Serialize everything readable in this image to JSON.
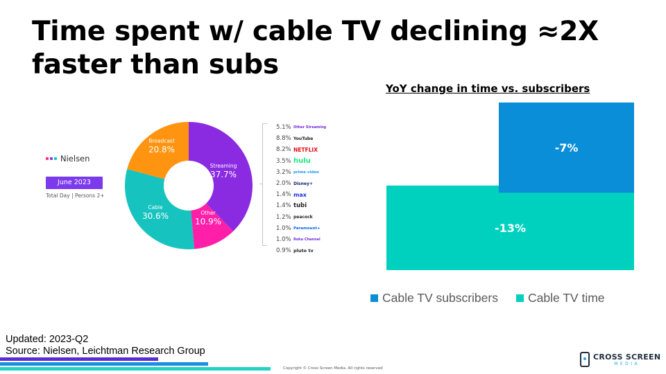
{
  "slide": {
    "title": "Time spent w/ cable TV declining ≈2X faster than subs"
  },
  "nielsen": {
    "brand": "Nielsen",
    "period": "June 2023",
    "audience": "Total Day | Persons 2+",
    "segments": [
      {
        "label": "Streaming",
        "value": "37.7%",
        "pct": 37.7,
        "color": "#8a2be2"
      },
      {
        "label": "Other",
        "value": "10.9%",
        "pct": 10.9,
        "color": "#ff1fa8"
      },
      {
        "label": "Cable",
        "value": "30.6%",
        "pct": 30.6,
        "color": "#17c3be"
      },
      {
        "label": "Broadcast",
        "value": "20.8%",
        "pct": 20.8,
        "color": "#ff9410"
      }
    ],
    "streaming_breakdown": [
      {
        "pct": "5.1%",
        "service": "Other Streaming",
        "color": "#6d28d9",
        "size": 5
      },
      {
        "pct": "8.8%",
        "service": "YouTube",
        "color": "#222222",
        "size": 6
      },
      {
        "pct": "8.2%",
        "service": "NETFLIX",
        "color": "#e50914",
        "size": 7.5
      },
      {
        "pct": "3.5%",
        "service": "hulu",
        "color": "#1ce783",
        "size": 10
      },
      {
        "pct": "3.2%",
        "service": "prime video",
        "color": "#1a98ff",
        "size": 5.5
      },
      {
        "pct": "2.0%",
        "service": "Disney+",
        "color": "#0b1f66",
        "size": 6
      },
      {
        "pct": "1.4%",
        "service": "max",
        "color": "#1a2ee8",
        "size": 8
      },
      {
        "pct": "1.4%",
        "service": "tubi",
        "color": "#222222",
        "size": 8.5
      },
      {
        "pct": "1.2%",
        "service": "peacock",
        "color": "#222222",
        "size": 6
      },
      {
        "pct": "1.0%",
        "service": "Paramount+",
        "color": "#0064ff",
        "size": 5.5
      },
      {
        "pct": "1.0%",
        "service": "Roku Channel",
        "color": "#6c2bd9",
        "size": 5
      },
      {
        "pct": "0.9%",
        "service": "pluto tv",
        "color": "#222222",
        "size": 6.5
      }
    ]
  },
  "chart_data": {
    "type": "bar",
    "title": "YoY change in time vs. subscribers",
    "xlabel": "",
    "ylabel": "",
    "ylim": [
      -13,
      0
    ],
    "grid": false,
    "legend_position": "bottom",
    "series": [
      {
        "name": "Cable TV subscribers",
        "value": -7,
        "label": "-7%",
        "color": "#0b8ed8"
      },
      {
        "name": "Cable TV time",
        "value": -13,
        "label": "-13%",
        "color": "#00d1bf"
      }
    ]
  },
  "footer": {
    "updated": "Updated: 2023-Q2",
    "source": "Source: Nielsen, Leichtman Research Group",
    "copyright": "Copyright © Cross Screen Media. All rights reserved",
    "logo_top": "CROSS SCREEN",
    "logo_bottom": "MEDIA",
    "stripe_colors": [
      "#5b2bd4",
      "#1a8fe0",
      "#22d3c5"
    ]
  }
}
